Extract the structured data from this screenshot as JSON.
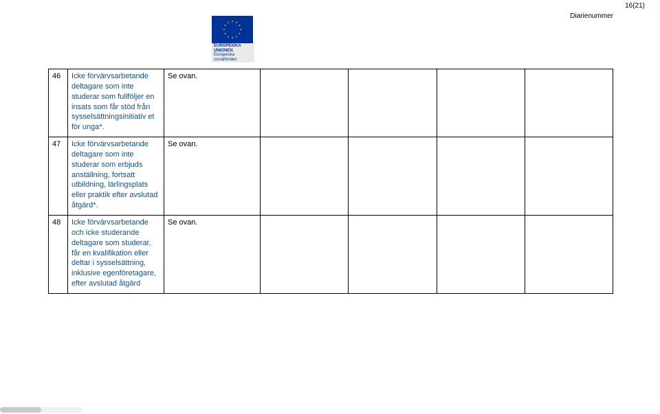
{
  "header": {
    "page_number": "16(21)",
    "diarienummer": "Diarienummer",
    "logo_top": "EUROPEISKA UNIONEN",
    "logo_bottom": "Europeiska socialfonden"
  },
  "rows": [
    {
      "num": "46",
      "desc": "Icke förvärvsarbetande deltagare som inte studerar som fullföljer en insats som får stöd från sysselsättningsinitiativ et för unga*.",
      "col3": "Se ovan."
    },
    {
      "num": "47",
      "desc": "Icke förvärvsarbetande deltagare som inte studerar som erbjuds anställning, fortsatt utbildning, lärlingsplats eller praktik efter avslutad åtgärd*.",
      "col3": "Se ovan."
    },
    {
      "num": "48",
      "desc": "Icke förvärvsarbetande och icke studerande deltagare som studerar, får en kvalifikation eller deltar i sysselsättning, inklusive egenföretagare, efter avslutad åtgärd",
      "col3": "Se ovan."
    }
  ]
}
